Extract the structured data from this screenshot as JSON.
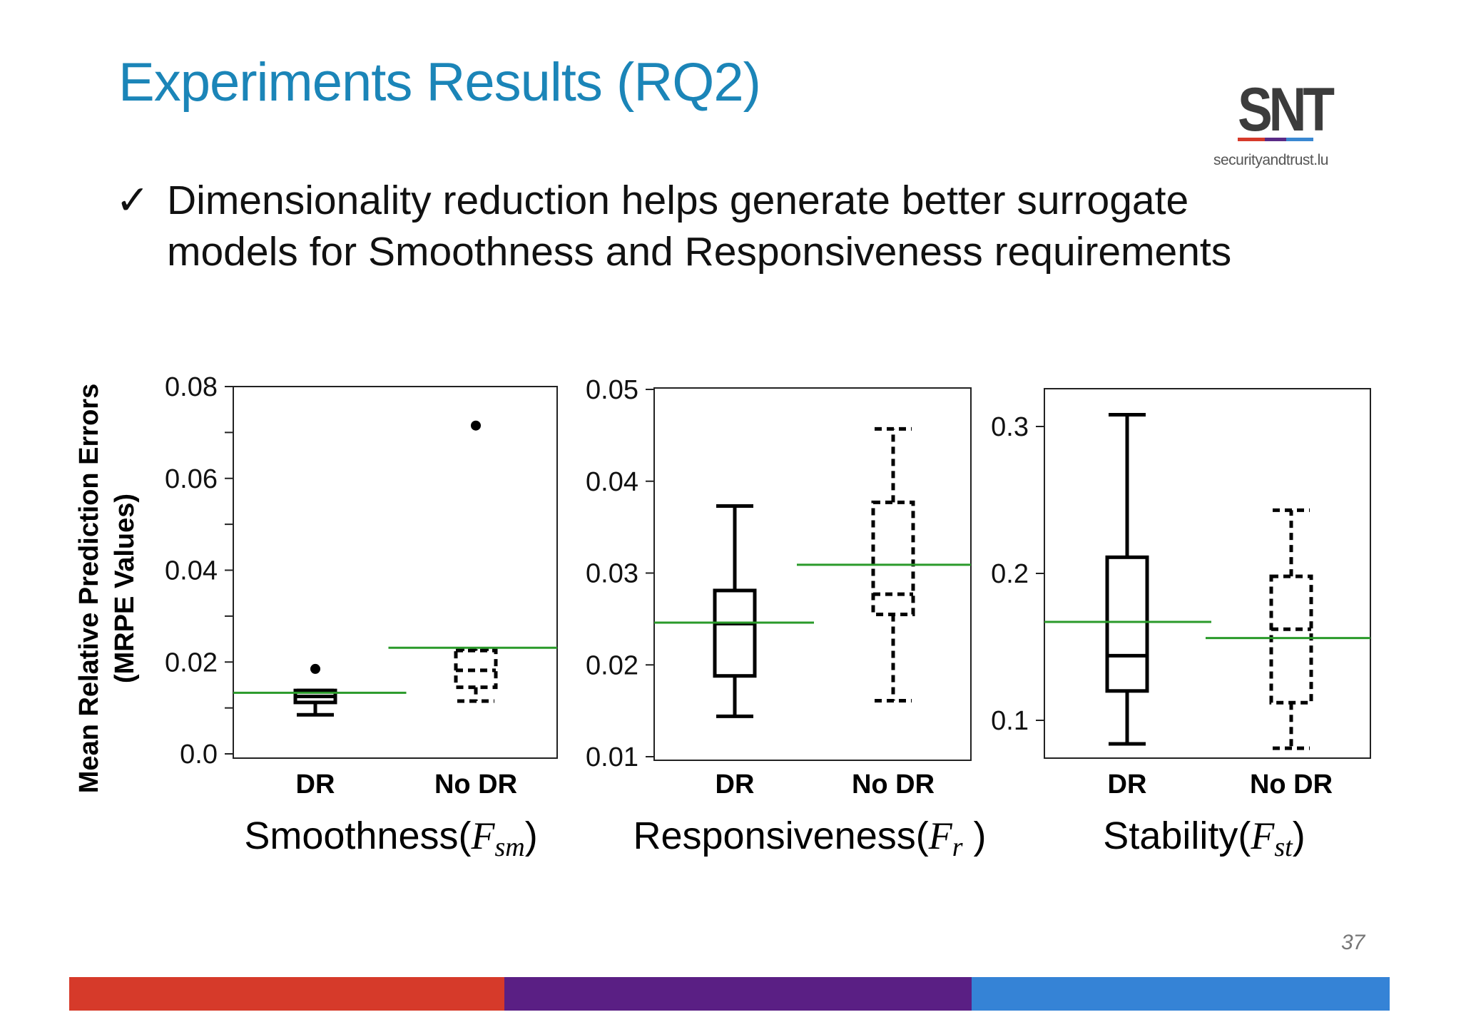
{
  "slide": {
    "title": "Experiments Results (RQ2)",
    "check_glyph": "✓",
    "bullet": "Dimensionality reduction helps generate better surrogate models for Smoothness and Responsiveness requirements",
    "y_label_line1": "Mean Relative Prediction Errors",
    "y_label_line2": "(MRPE Values)",
    "page_number": "37"
  },
  "logo": {
    "text": "SNT",
    "url": "securityandtrust.lu",
    "bar_colors": [
      "#d63a2a",
      "#5a2a86",
      "#3a88d2"
    ]
  },
  "footer": {
    "colors": [
      "#d63a2a",
      "#5a1f84",
      "#3583d6"
    ]
  },
  "colors": {
    "title": "#1b85b8",
    "reference_line": "#2a9a2a",
    "box": "#000000"
  },
  "chart_data": [
    {
      "type": "box",
      "title_text": "Smoothness(",
      "title_var": "F",
      "title_sub": "sm",
      "title_close": ")",
      "categories": [
        "DR",
        "No DR"
      ],
      "yticks": [
        "0.08",
        "0.06",
        "0.04",
        "0.02",
        "0.0"
      ],
      "ylim": [
        0.0,
        0.08
      ],
      "boxes": [
        {
          "category": "DR",
          "style": "solid",
          "whisker_low": 0.0085,
          "q1": 0.0112,
          "median": 0.0125,
          "q3": 0.0138,
          "whisker_high": 0.0138,
          "outliers": [
            0.0185
          ]
        },
        {
          "category": "No DR",
          "style": "dashed",
          "whisker_low": 0.0115,
          "q1": 0.0145,
          "median": 0.0182,
          "q3": 0.0225,
          "whisker_high": 0.0228,
          "outliers": [
            0.0715
          ]
        }
      ],
      "reference_lines": [
        {
          "category": "DR",
          "value": 0.0133
        },
        {
          "category": "No DR",
          "value": 0.0231
        }
      ]
    },
    {
      "type": "box",
      "title_text": "Responsiveness(",
      "title_var": "F",
      "title_sub": "r",
      "title_close": " )",
      "categories": [
        "DR",
        "No DR"
      ],
      "yticks": [
        "0.05",
        "0.04",
        "0.03",
        "0.02",
        "0.01"
      ],
      "ylim": [
        0.01,
        0.05
      ],
      "boxes": [
        {
          "category": "DR",
          "style": "solid",
          "whisker_low": 0.0144,
          "q1": 0.0188,
          "median": 0.0245,
          "q3": 0.0281,
          "whisker_high": 0.0373,
          "outliers": []
        },
        {
          "category": "No DR",
          "style": "dashed",
          "whisker_low": 0.0161,
          "q1": 0.0255,
          "median": 0.0277,
          "q3": 0.0377,
          "whisker_high": 0.0457,
          "outliers": []
        }
      ],
      "reference_lines": [
        {
          "category": "DR",
          "value": 0.0246
        },
        {
          "category": "No DR",
          "value": 0.0309
        }
      ]
    },
    {
      "type": "box",
      "title_text": "Stability(",
      "title_var": "F",
      "title_sub": "st",
      "title_close": ")",
      "categories": [
        "DR",
        "No DR"
      ],
      "yticks": [
        "0.3",
        "0.2",
        "0.1"
      ],
      "ytick_values": [
        0.3,
        0.2,
        0.1
      ],
      "ylim": [
        0.075,
        0.325
      ],
      "boxes": [
        {
          "category": "DR",
          "style": "solid",
          "whisker_low": 0.084,
          "q1": 0.12,
          "median": 0.144,
          "q3": 0.211,
          "whisker_high": 0.308,
          "outliers": []
        },
        {
          "category": "No DR",
          "style": "dashed",
          "whisker_low": 0.081,
          "q1": 0.112,
          "median": 0.162,
          "q3": 0.198,
          "whisker_high": 0.243,
          "outliers": []
        }
      ],
      "reference_lines": [
        {
          "category": "DR",
          "value": 0.167
        },
        {
          "category": "No DR",
          "value": 0.156
        }
      ]
    }
  ]
}
